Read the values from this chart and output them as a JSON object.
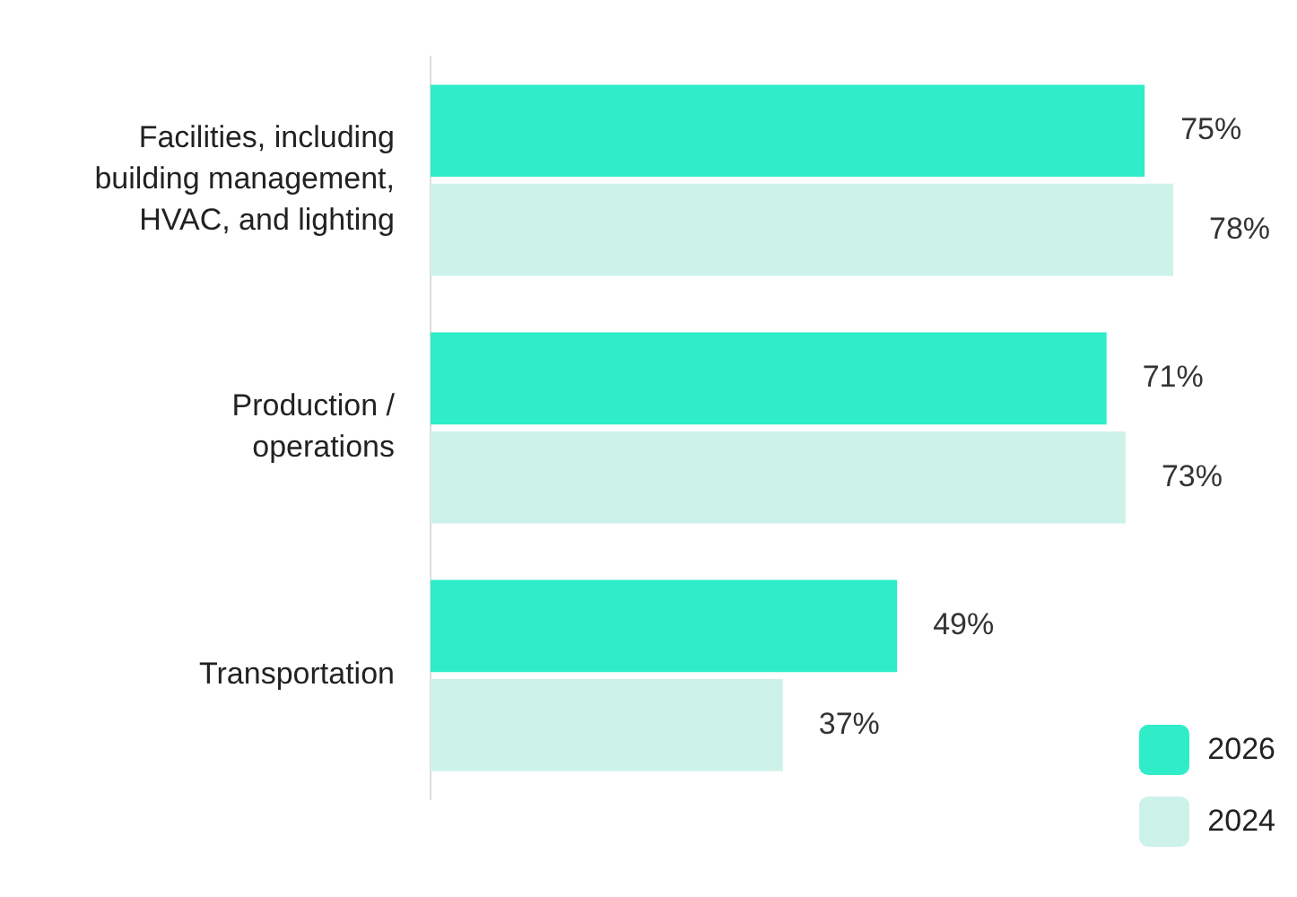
{
  "chart_data": {
    "type": "bar",
    "orientation": "horizontal",
    "categories": [
      "Facilities, including building management, HVAC, and lighting",
      "Production / operations",
      "Transportation"
    ],
    "series": [
      {
        "name": "2026",
        "color": "#2eedc8",
        "values": [
          75,
          71,
          49
        ],
        "value_labels": [
          "75%",
          "71%",
          "49%"
        ]
      },
      {
        "name": "2024",
        "color": "#cdf2e9",
        "values": [
          78,
          73,
          37
        ],
        "value_labels": [
          "78%",
          "73%",
          "37%"
        ]
      }
    ],
    "legend": "bottom right"
  }
}
